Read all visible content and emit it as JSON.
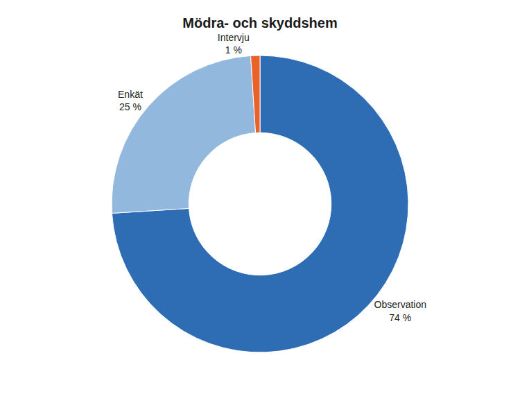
{
  "chart_data": {
    "type": "pie",
    "title": "Mödra- och skyddshem",
    "categories": [
      "Observation",
      "Enkät",
      "Intervju"
    ],
    "values": [
      74,
      25,
      1
    ],
    "value_labels": [
      "74 %",
      "25 %",
      "1 %"
    ],
    "colors": [
      "#2E6DB4",
      "#92B8DE",
      "#E8622A"
    ],
    "data_labels": true
  }
}
